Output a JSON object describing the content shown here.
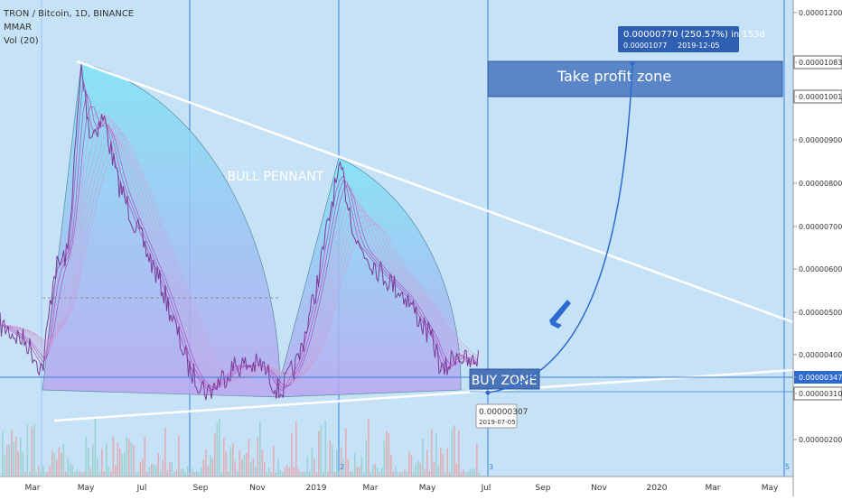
{
  "header": {
    "symbol": "TRON / Bitcoin, 1D, BINANCE",
    "indicators": [
      "MMAR",
      "Vol (20)"
    ]
  },
  "price_axis": {
    "labels": [
      "0.00001200",
      "0.00001083",
      "0.00001001",
      "0.00000900",
      "0.00000800",
      "0.00000700",
      "0.00000600",
      "0.00000500",
      "0.00000400",
      "0.00000347",
      "0.00000310",
      "0.00000200"
    ]
  },
  "time_axis": {
    "labels": [
      "Mar",
      "May",
      "Jul",
      "Sep",
      "Nov",
      "2019",
      "Mar",
      "May",
      "Jul",
      "Sep",
      "Nov",
      "2020",
      "Mar",
      "May"
    ]
  },
  "cycle_markers": [
    "2",
    "3",
    "5"
  ],
  "annotations": {
    "pattern": "BULL PENNANT",
    "buy_zone": "BUY ZONE",
    "take_profit": "Take profit zone",
    "projection": {
      "change": "0.00000770 (250.57%) in 153d",
      "target_price": "0.00001077",
      "target_date": "2019-12-05"
    },
    "price_marker": {
      "price": "0.00000307",
      "date": "2019-07-05"
    }
  }
}
